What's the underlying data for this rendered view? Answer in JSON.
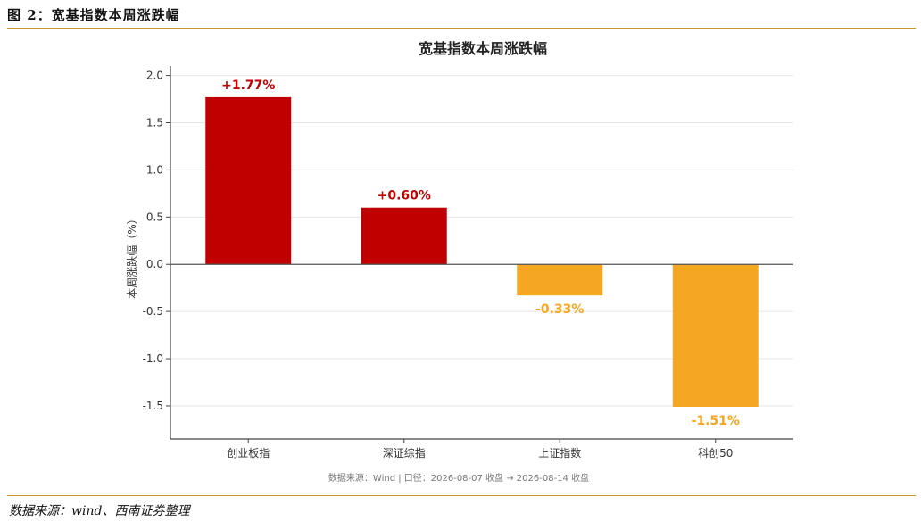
{
  "figure": {
    "title": "图 2：宽基指数本周涨跌幅",
    "footer": "数据来源：wind、西南证券整理"
  },
  "chart_data": {
    "type": "bar",
    "title": "宽基指数本周涨跌幅",
    "ylabel": "本周涨跌幅（%）",
    "xlabel": "",
    "categories": [
      "创业板指",
      "深证综指",
      "上证指数",
      "科创50"
    ],
    "values": [
      1.77,
      0.6,
      -0.33,
      -1.51
    ],
    "data_labels": [
      "+1.77%",
      "+0.60%",
      "-0.33%",
      "-1.51%"
    ],
    "ylim": [
      -1.85,
      2.1
    ],
    "yticks": [
      2.0,
      1.5,
      1.0,
      0.5,
      0.0,
      -0.5,
      -1.0,
      -1.5
    ],
    "ytick_labels": [
      "2.0",
      "1.5",
      "1.0",
      "0.5",
      "0.0",
      "-0.5",
      "-1.0",
      "-1.5"
    ],
    "grid": true,
    "colors": {
      "positive": "#c00000",
      "negative": "#f5a623",
      "zero_line": "#555555"
    },
    "source_note": "数据来源：Wind | 口径：2026-08-07 收盘 → 2026-08-14 收盘"
  }
}
